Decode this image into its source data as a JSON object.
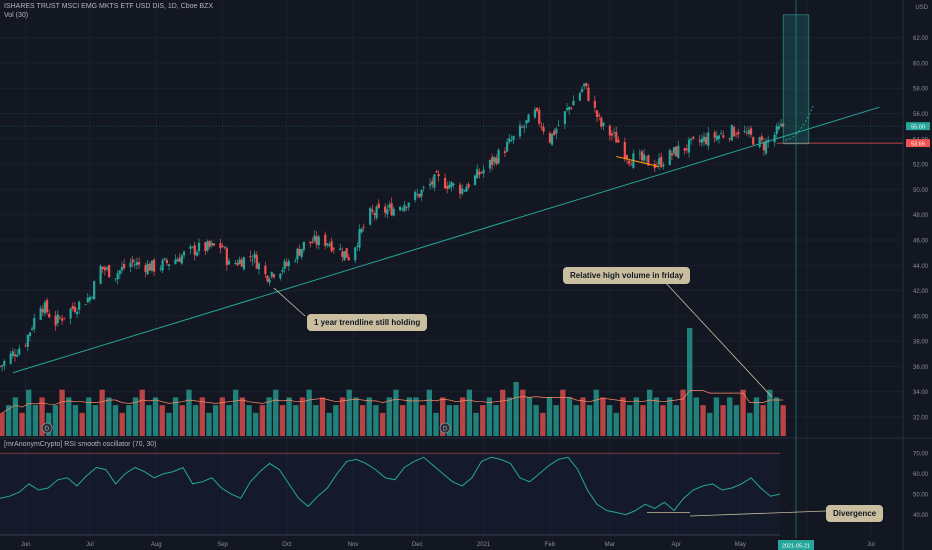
{
  "header": {
    "symbol_line": "ISHARES TRUST MSCI EMG MKTS ETF USD DIS, 1D, Cboe BZX",
    "vol_label": "Vol (30)",
    "rsi_label": "[mrAnonymCrypto] RSI smooth oscillator (70, 30)"
  },
  "currency": "USD",
  "price_axis": [
    "62.00",
    "60.00",
    "58.00",
    "56.00",
    "54.00",
    "52.00",
    "50.00",
    "48.00",
    "46.00",
    "44.00",
    "42.00",
    "40.00",
    "38.00",
    "36.00",
    "34.00",
    "32.00"
  ],
  "rsi_axis": [
    "70.00",
    "60.00",
    "50.00",
    "40.00"
  ],
  "time_axis": [
    "Jun",
    "Jul",
    "Aug",
    "Sep",
    "Oct",
    "Nov",
    "Dec",
    "2021",
    "Feb",
    "Mar",
    "Apr",
    "May",
    "Jun",
    "Jul"
  ],
  "badges": {
    "last_price": "55.00",
    "stop_price": "53.66",
    "date_marker": "2021-05-21"
  },
  "annotations": {
    "trendline": "1 year trendline still holding",
    "volume": "Relative high volume in friday",
    "divergence": "Divergence"
  },
  "events": {
    "dividend_marker": "D"
  },
  "colors": {
    "background": "#131722",
    "up": "#26a69a",
    "down": "#ef5350",
    "trendline": "#26a69a",
    "stop_line": "#ef5350",
    "rsi_line": "#26a69a",
    "callout": "#c9bfa0"
  },
  "chart_data": [
    {
      "type": "candlestick",
      "ylim": [
        30.5,
        64.5
      ],
      "months": [
        "Jun",
        "Jul",
        "Aug",
        "Sep",
        "Oct",
        "Nov",
        "Dec",
        "2021",
        "Feb",
        "Mar",
        "Apr",
        "May",
        "Jun",
        "Jul"
      ],
      "close_path": [
        [
          "2020-05-20",
          36.0
        ],
        [
          "2020-06-01",
          38.0
        ],
        [
          "2020-06-08",
          41.0
        ],
        [
          "2020-06-15",
          39.5
        ],
        [
          "2020-06-22",
          40.5
        ],
        [
          "2020-07-01",
          41.5
        ],
        [
          "2020-07-06",
          43.8
        ],
        [
          "2020-07-13",
          43.3
        ],
        [
          "2020-07-20",
          44.2
        ],
        [
          "2020-08-01",
          43.8
        ],
        [
          "2020-08-10",
          44.5
        ],
        [
          "2020-08-20",
          45.3
        ],
        [
          "2020-09-01",
          45.5
        ],
        [
          "2020-09-04",
          44.0
        ],
        [
          "2020-09-15",
          44.8
        ],
        [
          "2020-09-21",
          43.2
        ],
        [
          "2020-10-01",
          44.0
        ],
        [
          "2020-10-10",
          45.8
        ],
        [
          "2020-10-20",
          45.9
        ],
        [
          "2020-10-30",
          44.7
        ],
        [
          "2020-11-09",
          48.0
        ],
        [
          "2020-11-20",
          48.5
        ],
        [
          "2020-12-01",
          49.5
        ],
        [
          "2020-12-10",
          50.8
        ],
        [
          "2020-12-22",
          50.0
        ],
        [
          "2021-01-04",
          52.0
        ],
        [
          "2021-01-15",
          54.0
        ],
        [
          "2021-01-25",
          56.0
        ],
        [
          "2021-02-01",
          54.0
        ],
        [
          "2021-02-10",
          56.5
        ],
        [
          "2021-02-17",
          58.2
        ],
        [
          "2021-02-25",
          55.0
        ],
        [
          "2021-03-04",
          54.0
        ],
        [
          "2021-03-10",
          52.5
        ],
        [
          "2021-03-23",
          52.0
        ],
        [
          "2021-04-01",
          53.0
        ],
        [
          "2021-04-15",
          54.0
        ],
        [
          "2021-04-30",
          54.7
        ],
        [
          "2021-05-12",
          53.5
        ],
        [
          "2021-05-21",
          55.0
        ]
      ],
      "trendline": [
        [
          "2020-05-26",
          35.5
        ],
        [
          "2021-07-05",
          56.5
        ]
      ],
      "projection_box": {
        "x_from": "2021-05-21",
        "x_to": "2021-06-02",
        "y_from": 53.6,
        "y_to": 63.8
      },
      "stop_level": 53.66
    },
    {
      "type": "bar",
      "name": "Vol (30)",
      "values": [
        3,
        4,
        5,
        3,
        6,
        4,
        5,
        3,
        4,
        6,
        5,
        4,
        3,
        5,
        4,
        6,
        5,
        4,
        3,
        4,
        5,
        6,
        4,
        5,
        4,
        3,
        5,
        4,
        6,
        4,
        5,
        3,
        4,
        5,
        4,
        6,
        5,
        4,
        3,
        4,
        5,
        6,
        4,
        5,
        4,
        5,
        6,
        4,
        5,
        3,
        4,
        5,
        6,
        5,
        4,
        5,
        4,
        3,
        5,
        6,
        4,
        5,
        5,
        4,
        6,
        3,
        5,
        4,
        4,
        5,
        6,
        3,
        4,
        5,
        4,
        6,
        5,
        7,
        6,
        5,
        4,
        3,
        5,
        4,
        6,
        5,
        4,
        5,
        4,
        6,
        5,
        4,
        3,
        5,
        4,
        5,
        4,
        6,
        5,
        4,
        5,
        4,
        6,
        14,
        5,
        4,
        3,
        5,
        4,
        5,
        4,
        6,
        3,
        5,
        4,
        6,
        5,
        4
      ]
    },
    {
      "type": "line",
      "name": "[mrAnonymCrypto] RSI smooth oscillator (70, 30)",
      "ylim": [
        30,
        75
      ],
      "levels": [
        70,
        30
      ],
      "values": [
        48,
        49,
        51,
        55,
        52,
        53,
        57,
        58,
        54,
        59,
        63,
        62,
        55,
        60,
        63,
        61,
        58,
        60,
        61,
        63,
        55,
        56,
        58,
        53,
        50,
        48,
        56,
        61,
        65,
        62,
        55,
        48,
        44,
        49,
        53,
        60,
        66,
        67,
        65,
        62,
        58,
        57,
        63,
        66,
        68,
        64,
        60,
        56,
        54,
        58,
        66,
        68,
        67,
        65,
        58,
        56,
        60,
        64,
        67,
        68,
        62,
        52,
        45,
        42,
        41,
        40,
        42,
        45,
        43,
        46,
        42,
        48,
        52,
        54,
        55,
        52,
        53,
        55,
        58,
        53,
        49,
        50
      ]
    }
  ]
}
